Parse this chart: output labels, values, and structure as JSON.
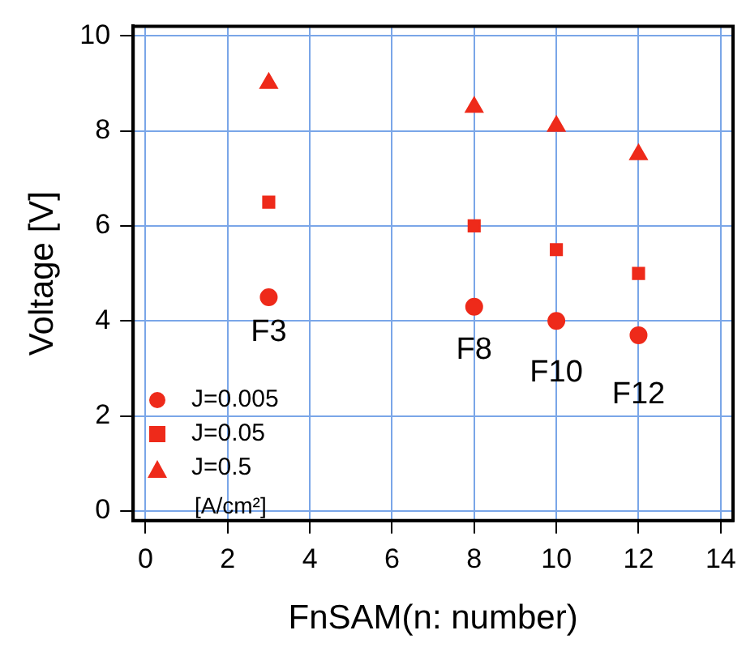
{
  "chart_data": {
    "type": "scatter",
    "xlabel": "FnSAM(n: number)",
    "ylabel": "Voltage [V]",
    "x": [
      3,
      8,
      10,
      12
    ],
    "series": [
      {
        "name": "J=0.005",
        "color": "#ee2a1a",
        "marker": "circle",
        "values": [
          4.5,
          4.3,
          4.0,
          3.7
        ]
      },
      {
        "name": "J=0.05",
        "color": "#ee2a1a",
        "marker": "square",
        "values": [
          6.5,
          6.0,
          5.5,
          5.0
        ]
      },
      {
        "name": "J=0.5",
        "color": "#ee2a1a",
        "marker": "triangle",
        "values": [
          9.0,
          8.5,
          8.1,
          7.5
        ]
      }
    ],
    "xlim": [
      -0.3,
      14.3
    ],
    "xticks": [
      0,
      2,
      4,
      6,
      8,
      10,
      12,
      14
    ],
    "ylim": [
      -0.2,
      10.2
    ],
    "yticks": [
      0,
      2,
      4,
      6,
      8,
      10
    ],
    "grid": true,
    "legend": "bottom left",
    "annotations": [
      "F3",
      "F8",
      "F10",
      "F12",
      "[A/cm²]"
    ]
  }
}
